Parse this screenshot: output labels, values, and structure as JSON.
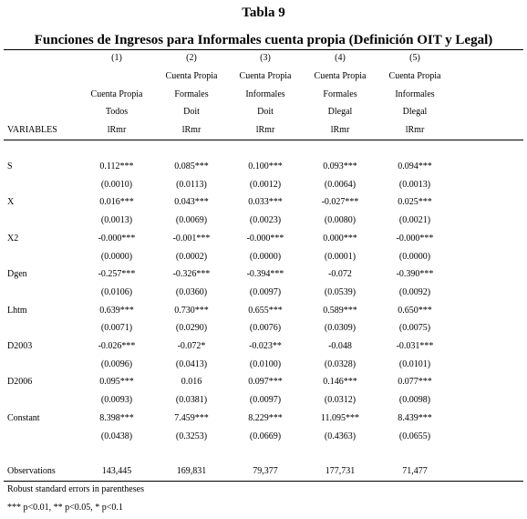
{
  "title": "Tabla 9",
  "subtitle": "Funciones de Ingresos para  Informales cuenta propia (Definición OIT y Legal)",
  "table": {
    "columns": [
      {
        "number": "(1)",
        "lines": [
          "Cuenta Propia",
          "Todos"
        ],
        "dep": "lRmr"
      },
      {
        "number": "(2)",
        "lines": [
          "Cuenta Propia",
          "Formales",
          "Doit"
        ],
        "dep": "lRmr"
      },
      {
        "number": "(3)",
        "lines": [
          "Cuenta Propia",
          "Informales",
          "Doit"
        ],
        "dep": "lRmr"
      },
      {
        "number": "(4)",
        "lines": [
          "Cuenta Propia",
          "Formales",
          "Dlegal"
        ],
        "dep": "lRmr"
      },
      {
        "number": "(5)",
        "lines": [
          "Cuenta Propia",
          "Informales",
          "Dlegal"
        ],
        "dep": "lRmr"
      }
    ],
    "variables_label": "VARIABLES",
    "rows": [
      {
        "variable": "S",
        "coef": [
          "0.112***",
          "0.085***",
          "0.100***",
          "0.093***",
          "0.094***"
        ],
        "se": [
          "(0.0010)",
          "(0.0113)",
          "(0.0012)",
          "(0.0064)",
          "(0.0013)"
        ]
      },
      {
        "variable": "X",
        "coef": [
          "0.016***",
          "0.043***",
          "0.033***",
          "-0.027***",
          "0.025***"
        ],
        "se": [
          "(0.0013)",
          "(0.0069)",
          "(0.0023)",
          "(0.0080)",
          "(0.0021)"
        ]
      },
      {
        "variable": "X2",
        "coef": [
          "-0.000***",
          "-0.001***",
          "-0.000***",
          "0.000***",
          "-0.000***"
        ],
        "se": [
          "(0.0000)",
          "(0.0002)",
          "(0.0000)",
          "(0.0001)",
          "(0.0000)"
        ]
      },
      {
        "variable": "Dgen",
        "coef": [
          "-0.257***",
          "-0.326***",
          "-0.394***",
          "-0.072",
          "-0.390***"
        ],
        "se": [
          "(0.0106)",
          "(0.0360)",
          "(0.0097)",
          "(0.0539)",
          "(0.0092)"
        ]
      },
      {
        "variable": "Lhtm",
        "coef": [
          "0.639***",
          "0.730***",
          "0.655***",
          "0.589***",
          "0.650***"
        ],
        "se": [
          "(0.0071)",
          "(0.0290)",
          "(0.0076)",
          "(0.0309)",
          "(0.0075)"
        ]
      },
      {
        "variable": "D2003",
        "coef": [
          "-0.026***",
          "-0.072*",
          "-0.023**",
          "-0.048",
          "-0.031***"
        ],
        "se": [
          "(0.0096)",
          "(0.0413)",
          "(0.0100)",
          "(0.0328)",
          "(0.0101)"
        ]
      },
      {
        "variable": "D2006",
        "coef": [
          "0.095***",
          "0.016",
          "0.097***",
          "0.146***",
          "0.077***"
        ],
        "se": [
          "(0.0093)",
          "(0.0381)",
          "(0.0097)",
          "(0.0312)",
          "(0.0098)"
        ]
      },
      {
        "variable": "Constant",
        "coef": [
          "8.398***",
          "7.459***",
          "8.229***",
          "11.095***",
          "8.439***"
        ],
        "se": [
          "(0.0438)",
          "(0.3253)",
          "(0.0669)",
          "(0.4363)",
          "(0.0655)"
        ]
      }
    ],
    "observations_label": "Observations",
    "observations": [
      "143,445",
      "169,831",
      "79,377",
      "177,731",
      "71,477"
    ]
  },
  "notes": [
    "Robust standard errors in parentheses",
    "*** p<0.01, ** p<0.05, * p<0.1"
  ]
}
